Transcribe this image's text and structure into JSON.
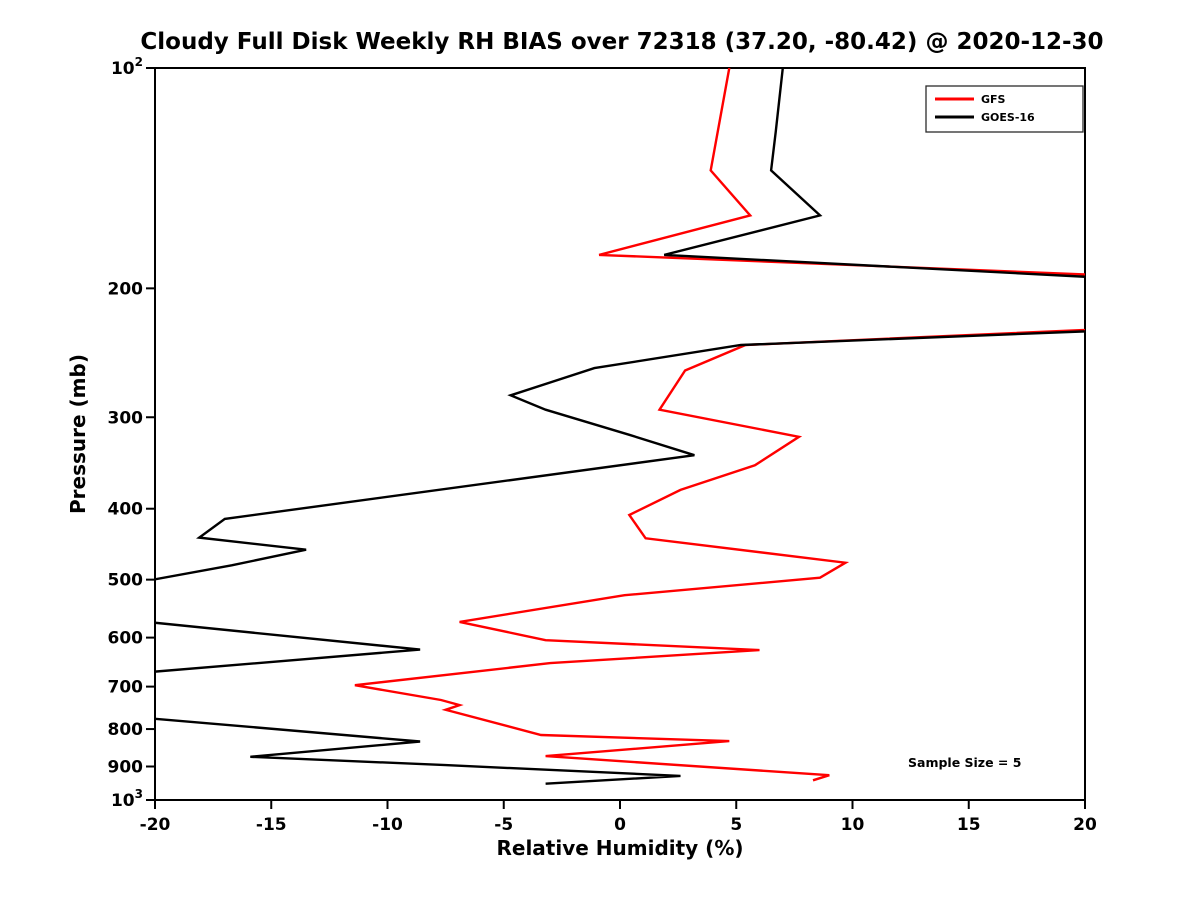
{
  "annotation": "Sample Size = 5",
  "chart_data": {
    "type": "line",
    "title": "Cloudy Full Disk Weekly RH BIAS over 72318 (37.20, -80.42) @ 2020-12-30",
    "xlabel": "Relative Humidity (%)",
    "ylabel": "Pressure (mb)",
    "xlim": [
      -20,
      20
    ],
    "ylim": [
      100,
      1000
    ],
    "yscale": "log",
    "y_inverted": true,
    "grid": false,
    "legend_position": "upper right",
    "annotation": "Sample Size = 5",
    "xticks": [
      -20,
      -15,
      -10,
      -5,
      0,
      5,
      10,
      15,
      20
    ],
    "yticks": [
      100,
      200,
      300,
      400,
      500,
      600,
      700,
      800,
      900,
      1000
    ],
    "ytick_labels": [
      "10^2",
      "200",
      "300",
      "400",
      "500",
      "600",
      "700",
      "800",
      "900",
      "10^3"
    ],
    "series": [
      {
        "name": "GFS",
        "color": "#ff0000",
        "points_format": "[relative_humidity_bias_pct, pressure_mb]",
        "points": [
          [
            4.7,
            100
          ],
          [
            3.9,
            138
          ],
          [
            5.6,
            159
          ],
          [
            -0.9,
            180
          ],
          [
            28,
            196
          ],
          [
            24,
            225
          ],
          [
            5.4,
            239
          ],
          [
            2.8,
            259
          ],
          [
            1.7,
            293
          ],
          [
            7.7,
            319
          ],
          [
            5.8,
            349
          ],
          [
            2.6,
            377
          ],
          [
            0.4,
            408
          ],
          [
            1.1,
            439
          ],
          [
            9.7,
            474
          ],
          [
            8.6,
            497
          ],
          [
            0.2,
            525
          ],
          [
            -6.9,
            571
          ],
          [
            -3.2,
            605
          ],
          [
            6.0,
            624
          ],
          [
            -3.0,
            650
          ],
          [
            -11.4,
            697
          ],
          [
            -7.7,
            730
          ],
          [
            -6.9,
            742
          ],
          [
            -7.5,
            753
          ],
          [
            -3.4,
            815
          ],
          [
            4.7,
            831
          ],
          [
            -3.2,
            871
          ],
          [
            9.0,
            925
          ],
          [
            8.3,
            940
          ]
        ]
      },
      {
        "name": "GOES-16",
        "color": "#000000",
        "points_format": "[relative_humidity_bias_pct, pressure_mb]",
        "points": [
          [
            7.0,
            100
          ],
          [
            6.7,
            122
          ],
          [
            6.5,
            138
          ],
          [
            8.6,
            159
          ],
          [
            1.9,
            180
          ],
          [
            27,
            198
          ],
          [
            23,
            227
          ],
          [
            5.2,
            239
          ],
          [
            -1.1,
            257
          ],
          [
            -4.7,
            280
          ],
          [
            -3.2,
            293
          ],
          [
            0.4,
            317
          ],
          [
            3.2,
            338
          ],
          [
            -17.0,
            413
          ],
          [
            -18.1,
            438
          ],
          [
            -13.5,
            455
          ],
          [
            -16.7,
            478
          ],
          [
            -23,
            520
          ],
          [
            -23,
            560
          ],
          [
            -8.6,
            623
          ],
          [
            -23,
            680
          ],
          [
            -23,
            760
          ],
          [
            -8.6,
            832
          ],
          [
            -15.9,
            873
          ],
          [
            -7.5,
            896
          ],
          [
            2.6,
            927
          ],
          [
            -3.2,
            950
          ]
        ]
      }
    ]
  }
}
